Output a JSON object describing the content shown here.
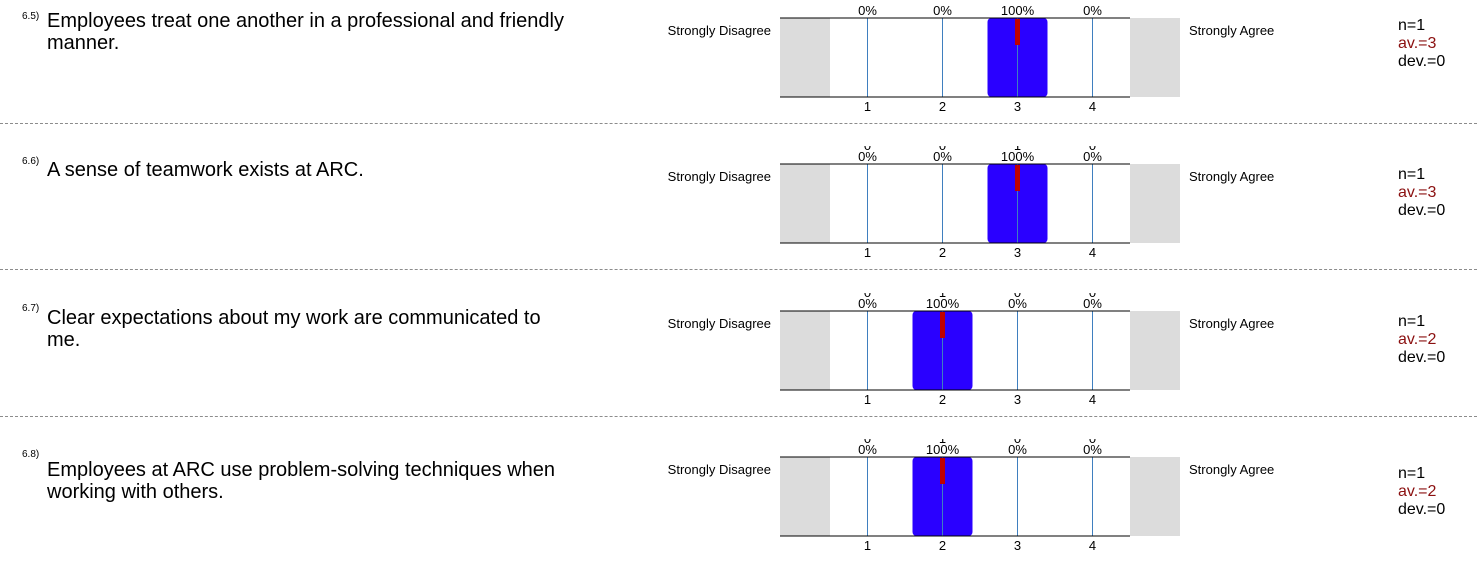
{
  "chart_data": [
    {
      "type": "bar",
      "id": "6.5)",
      "question": "Employees treat one another in a professional and friendly manner.",
      "left_label": "Strongly Disagree",
      "right_label": "Strongly Agree",
      "categories": [
        "1",
        "2",
        "3",
        "4"
      ],
      "counts": [
        null,
        null,
        null,
        null
      ],
      "percents": [
        "0%",
        "0%",
        "100%",
        "0%"
      ],
      "values": [
        0,
        0,
        100,
        0
      ],
      "ylim": [
        0,
        100
      ],
      "mean": 3,
      "stats": {
        "n": "n=1",
        "av": "av.=3",
        "dev": "dev.=0"
      }
    },
    {
      "type": "bar",
      "id": "6.6)",
      "question": "A sense of teamwork exists at ARC.",
      "left_label": "Strongly Disagree",
      "right_label": "Strongly Agree",
      "categories": [
        "1",
        "2",
        "3",
        "4"
      ],
      "counts": [
        "0",
        "0",
        "1",
        "0"
      ],
      "percents": [
        "0%",
        "0%",
        "100%",
        "0%"
      ],
      "values": [
        0,
        0,
        100,
        0
      ],
      "ylim": [
        0,
        100
      ],
      "mean": 3,
      "stats": {
        "n": "n=1",
        "av": "av.=3",
        "dev": "dev.=0"
      }
    },
    {
      "type": "bar",
      "id": "6.7)",
      "question": "Clear expectations about my work are communicated to me.",
      "left_label": "Strongly Disagree",
      "right_label": "Strongly Agree",
      "categories": [
        "1",
        "2",
        "3",
        "4"
      ],
      "counts": [
        "0",
        "1",
        "0",
        "0"
      ],
      "percents": [
        "0%",
        "100%",
        "0%",
        "0%"
      ],
      "values": [
        0,
        100,
        0,
        0
      ],
      "ylim": [
        0,
        100
      ],
      "mean": 2,
      "stats": {
        "n": "n=1",
        "av": "av.=2",
        "dev": "dev.=0"
      }
    },
    {
      "type": "bar",
      "id": "6.8)",
      "question": "Employees at ARC use problem-solving techniques when working with others.",
      "left_label": "Strongly Disagree",
      "right_label": "Strongly Agree",
      "categories": [
        "1",
        "2",
        "3",
        "4"
      ],
      "counts": [
        "0",
        "1",
        "0",
        "0"
      ],
      "percents": [
        "0%",
        "100%",
        "0%",
        "0%"
      ],
      "values": [
        0,
        100,
        0,
        0
      ],
      "ylim": [
        0,
        100
      ],
      "mean": 2,
      "stats": {
        "n": "n=1",
        "av": "av.=2",
        "dev": "dev.=0"
      }
    }
  ],
  "colors": {
    "bar": "#2a00ff",
    "mean_marker": "#c00000",
    "gridline": "#3f7fbf",
    "side_box": "#dcdcdc",
    "average_text": "#8b1010"
  }
}
